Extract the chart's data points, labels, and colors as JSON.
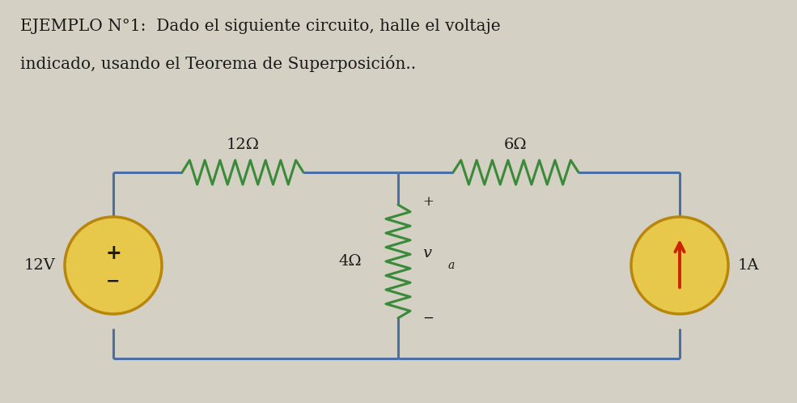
{
  "title_line1": "EJEMPLO N°1:  Dado el siguiente circuito, halle el voltaje",
  "title_line2": "indicado, usando el Teorema de Superposición..",
  "bg_color": "#d4d0c3",
  "wire_color": "#4a6fa5",
  "resistor_color_top": "#3a8a3a",
  "resistor_color_mid": "#3a8a3a",
  "voltage_source_color": "#e8c84a",
  "current_source_color": "#e8c84a",
  "current_arrow_color": "#cc2200",
  "text_color": "#1a1a1a",
  "label_12ohm": "12Ω",
  "label_6ohm": "6Ω",
  "label_4ohm": "4Ω",
  "label_va": "v",
  "label_va_sub": "a",
  "label_plus": "+",
  "label_minus": "−",
  "label_12v": "12V",
  "label_1a": "1A",
  "label_plus_src": "+",
  "title_fontsize": 14.5,
  "circuit_fontsize": 14
}
